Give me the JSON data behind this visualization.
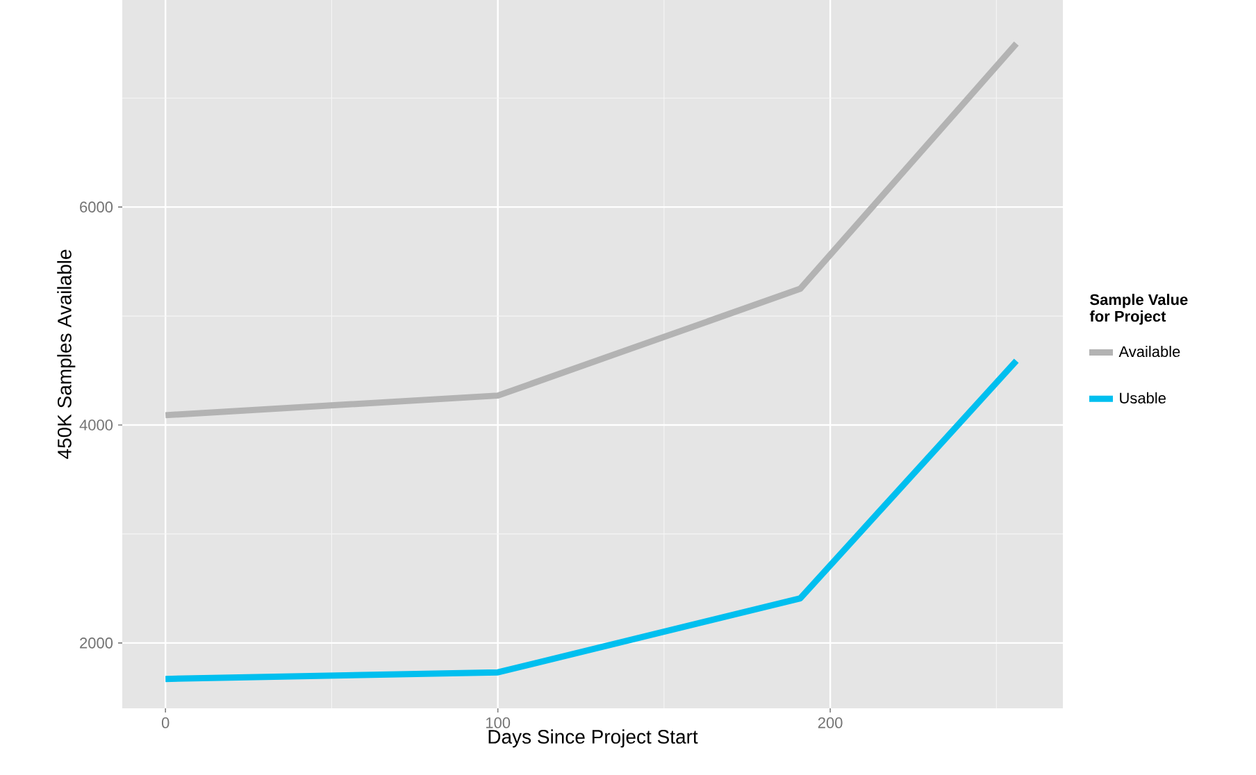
{
  "chart_data": {
    "type": "line",
    "xlabel": "Days Since Project Start",
    "ylabel": "450K Samples Available",
    "legend_title": "Sample Value\nfor Project",
    "x": [
      0,
      100,
      191,
      256
    ],
    "series": [
      {
        "name": "Available",
        "color": "#b3b3b3",
        "values": [
          4090,
          4270,
          5250,
          7500
        ]
      },
      {
        "name": "Usable",
        "color": "#00bfef",
        "values": [
          1670,
          1730,
          2410,
          4590
        ]
      }
    ],
    "xlim": [
      -13,
      270
    ],
    "ylim": [
      1400,
      7900
    ],
    "xticks": [
      0,
      100,
      200
    ],
    "yticks": [
      2000,
      4000,
      6000
    ],
    "grid": true,
    "legend": "right",
    "marker": "none",
    "line_style": "solid"
  }
}
